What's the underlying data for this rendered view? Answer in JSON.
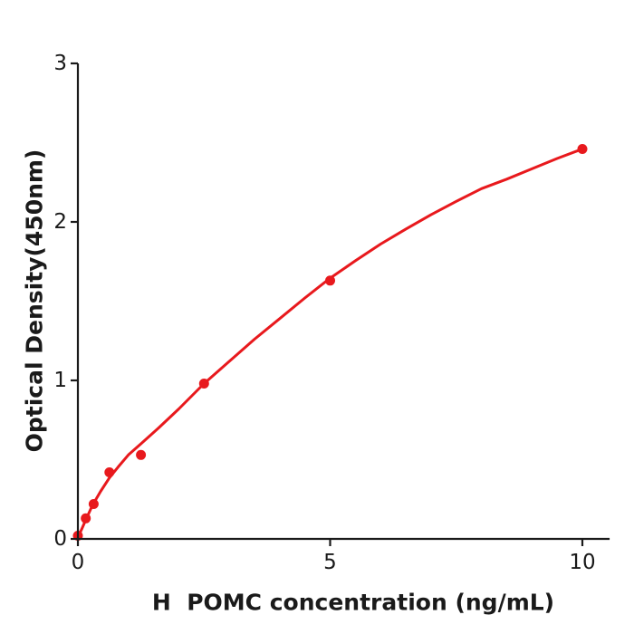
{
  "figure": {
    "background": "#ffffff",
    "accent_red": "#e8191d",
    "axis_color": "#1a1a1a"
  },
  "chart_data": {
    "type": "scatter",
    "title": "",
    "xlabel": "H  POMC concentration (ng/mL)",
    "ylabel": "Optical Density(450nm)",
    "xlim": [
      0,
      10.54
    ],
    "ylim": [
      0,
      3
    ],
    "grid": false,
    "legend": "none",
    "x_ticks": {
      "values": [
        0,
        5,
        10
      ],
      "labels": [
        "0",
        "5",
        "10"
      ]
    },
    "y_ticks": {
      "values": [
        0,
        1,
        2,
        3
      ],
      "labels": [
        "0",
        "1",
        "2",
        "3"
      ]
    },
    "series": [
      {
        "name": "standard-data-points",
        "type": "scatter",
        "color": "#e8191d",
        "x": [
          0,
          0.156,
          0.313,
          0.625,
          1.25,
          2.5,
          5,
          10
        ],
        "y": [
          0.02,
          0.13,
          0.22,
          0.42,
          0.53,
          0.98,
          1.63,
          2.46
        ]
      },
      {
        "name": "fitted-curve",
        "type": "line",
        "color": "#e8191d",
        "x": [
          0,
          0.08,
          0.156,
          0.25,
          0.313,
          0.45,
          0.625,
          0.8,
          1.0,
          1.25,
          1.6,
          2.0,
          2.5,
          3.0,
          3.5,
          4.0,
          4.5,
          5.0,
          5.5,
          6.0,
          6.5,
          7.0,
          7.5,
          8.0,
          8.5,
          9.0,
          9.5,
          10.0
        ],
        "y": [
          0.01,
          0.065,
          0.12,
          0.185,
          0.225,
          0.3,
          0.385,
          0.455,
          0.53,
          0.6,
          0.7,
          0.82,
          0.98,
          1.12,
          1.26,
          1.39,
          1.52,
          1.645,
          1.755,
          1.86,
          1.955,
          2.045,
          2.13,
          2.21,
          2.27,
          2.335,
          2.4,
          2.46
        ]
      }
    ]
  }
}
